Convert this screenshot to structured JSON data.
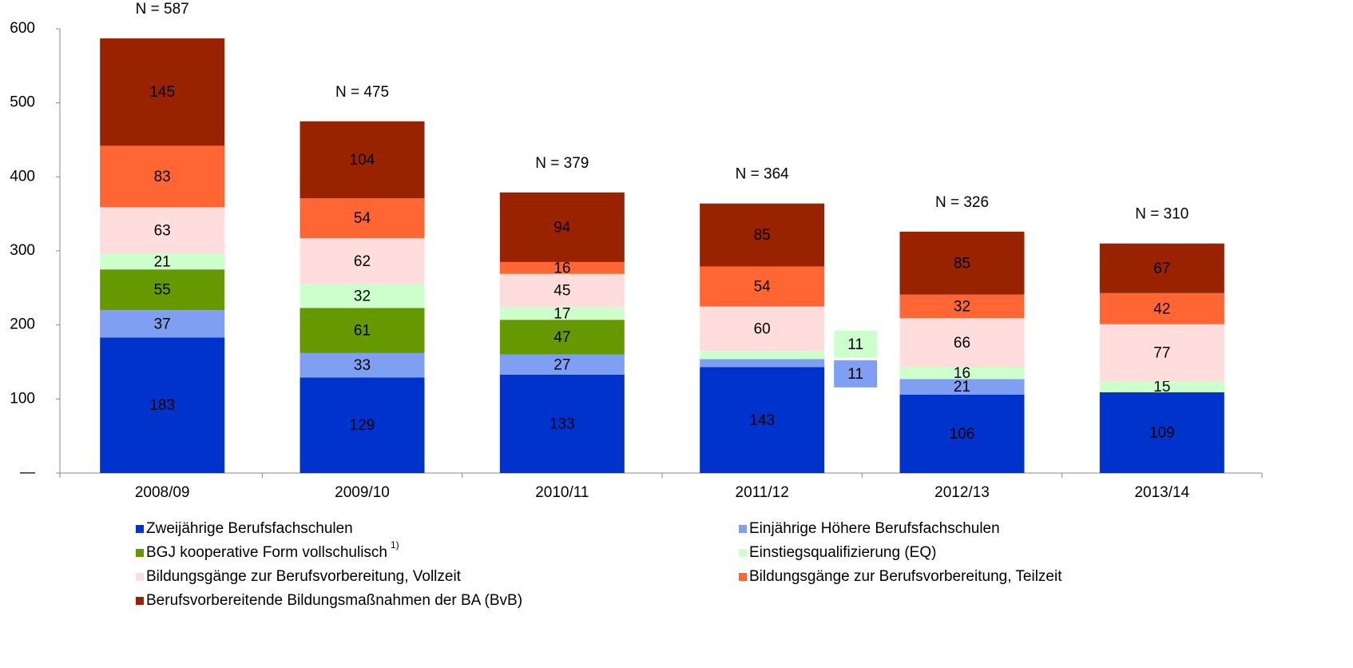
{
  "chart_data": {
    "type": "stacked_bar",
    "categories": [
      "2008/09",
      "2009/10",
      "2010/11",
      "2011/12",
      "2012/13",
      "2013/14"
    ],
    "total_labels": [
      "N = 587",
      "N = 475",
      "N = 379",
      "N =  364",
      "N =  326",
      "N =  310"
    ],
    "series": [
      {
        "name": "Zweijährige Berufsfachschulen",
        "color": "#0033cc",
        "label_color": "#ffffff",
        "values": [
          183,
          129,
          133,
          143,
          106,
          109
        ]
      },
      {
        "name": "Einjährige Höhere Berufsfachschulen",
        "color": "#7f9ff2",
        "label_color": "#000000",
        "values": [
          37,
          33,
          27,
          11,
          21,
          0
        ]
      },
      {
        "name": "BGJ kooperative Form vollschulisch",
        "superscript": "1)",
        "color": "#669900",
        "label_color": "#000000",
        "values": [
          55,
          61,
          47,
          0,
          0,
          0
        ]
      },
      {
        "name": "Einstiegsqualifizierung (EQ)",
        "color": "#ccffcc",
        "label_color": "#000000",
        "values": [
          21,
          32,
          17,
          11,
          16,
          15
        ]
      },
      {
        "name": "Bildungsgänge zur Berufsvorbereitung, Vollzeit",
        "color": "#ffdddd",
        "label_color": "#000000",
        "values": [
          63,
          62,
          45,
          60,
          66,
          77
        ]
      },
      {
        "name": "Bildungsgänge zur Berufsvorbereitung, Teilzeit",
        "color": "#ff6633",
        "label_color": "#000000",
        "values": [
          83,
          54,
          16,
          54,
          32,
          42
        ]
      },
      {
        "name": "Berufsvorbereitende Bildungsmaßnahmen der BA (BvB)",
        "color": "#992200",
        "label_color": "#ffffff",
        "values": [
          145,
          104,
          94,
          85,
          85,
          67
        ]
      }
    ],
    "ylim": [
      0,
      600
    ],
    "yticks": [
      {
        "value": 0,
        "label": "—"
      },
      100,
      200,
      300,
      400,
      500,
      600
    ],
    "grid": false
  }
}
